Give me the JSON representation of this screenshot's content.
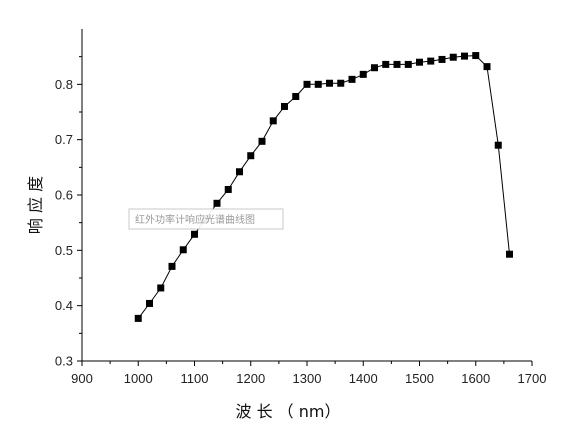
{
  "chart_data": {
    "type": "line",
    "title": "",
    "xlabel": "波 长 （ nm）",
    "ylabel": "响 应 度",
    "xlim": [
      900,
      1700
    ],
    "ylim": [
      0.3,
      0.9
    ],
    "x_ticks": [
      900,
      1000,
      1100,
      1200,
      1300,
      1400,
      1500,
      1600,
      1700
    ],
    "y_ticks": [
      0.3,
      0.4,
      0.5,
      0.6,
      0.7,
      0.8
    ],
    "x_tick_labels": [
      "900",
      "1000",
      "1100",
      "1200",
      "1300",
      "1400",
      "1500",
      "1600",
      "1700"
    ],
    "y_tick_labels": [
      "0.3",
      "0.4",
      "0.5",
      "0.6",
      "0.7",
      "0.8"
    ],
    "grid": false,
    "legend": "none",
    "marker": "square",
    "series": [
      {
        "color": "#000000",
        "points": [
          [
            1000,
            0.377
          ],
          [
            1020,
            0.404
          ],
          [
            1040,
            0.432
          ],
          [
            1060,
            0.471
          ],
          [
            1080,
            0.501
          ],
          [
            1100,
            0.529
          ],
          [
            1120,
            0.557
          ],
          [
            1140,
            0.585
          ],
          [
            1160,
            0.61
          ],
          [
            1180,
            0.642
          ],
          [
            1200,
            0.671
          ],
          [
            1220,
            0.697
          ],
          [
            1240,
            0.734
          ],
          [
            1260,
            0.76
          ],
          [
            1280,
            0.778
          ],
          [
            1300,
            0.8
          ],
          [
            1320,
            0.8
          ],
          [
            1340,
            0.802
          ],
          [
            1360,
            0.802
          ],
          [
            1380,
            0.809
          ],
          [
            1400,
            0.818
          ],
          [
            1420,
            0.83
          ],
          [
            1440,
            0.836
          ],
          [
            1460,
            0.836
          ],
          [
            1480,
            0.836
          ],
          [
            1500,
            0.84
          ],
          [
            1520,
            0.842
          ],
          [
            1540,
            0.845
          ],
          [
            1560,
            0.849
          ],
          [
            1580,
            0.851
          ],
          [
            1600,
            0.852
          ],
          [
            1620,
            0.832
          ],
          [
            1640,
            0.69
          ],
          [
            1660,
            0.493
          ]
        ]
      }
    ],
    "watermark": "红外功率计响应光谱曲线图"
  }
}
